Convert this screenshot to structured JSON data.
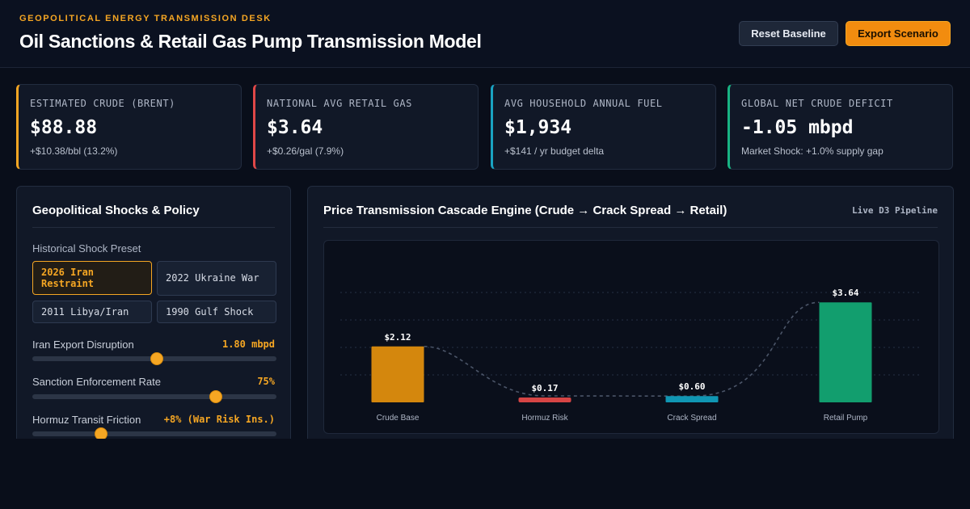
{
  "header": {
    "desk": "GEOPOLITICAL ENERGY TRANSMISSION DESK",
    "title": "Oil Sanctions & Retail Gas Pump Transmission Model",
    "reset_label": "Reset Baseline",
    "export_label": "Export Scenario"
  },
  "kpis": [
    {
      "label": "ESTIMATED CRUDE (BRENT)",
      "value": "$88.88",
      "sub": "+$10.38/bbl (13.2%)",
      "accent": "#f5a623"
    },
    {
      "label": "NATIONAL AVG RETAIL GAS",
      "value": "$3.64",
      "sub": "+$0.26/gal (7.9%)",
      "accent": "#e04848"
    },
    {
      "label": "AVG HOUSEHOLD ANNUAL FUEL",
      "value": "$1,934",
      "sub": "+$141 / yr budget delta",
      "accent": "#1aa3c2"
    },
    {
      "label": "GLOBAL NET CRUDE DEFICIT",
      "value": "-1.05 mbpd",
      "sub": "Market Shock: +1.0% supply gap",
      "accent": "#18b383"
    }
  ],
  "controls": {
    "title": "Geopolitical Shocks & Policy",
    "preset_label": "Historical Shock Preset",
    "presets": [
      {
        "label": "2026 Iran Restraint",
        "active": true
      },
      {
        "label": "2022 Ukraine War",
        "active": false
      },
      {
        "label": "2011 Libya/Iran",
        "active": false
      },
      {
        "label": "1990 Gulf Shock",
        "active": false
      }
    ],
    "sliders": [
      {
        "label": "Iran Export Disruption",
        "value": "1.80 mbpd",
        "fraction": 0.51
      },
      {
        "label": "Sanction Enforcement Rate",
        "value": "75%",
        "fraction": 0.75
      },
      {
        "label": "Hormuz Transit Friction",
        "value": "+8% (War Risk Ins.)",
        "fraction": 0.28
      }
    ]
  },
  "cascade": {
    "title": "Price Transmission Cascade Engine (Crude → Crack Spread → Retail)",
    "tag": "Live D3 Pipeline"
  },
  "chart_data": {
    "type": "bar",
    "categories": [
      "Crude Base",
      "Hormuz Risk",
      "Crack Spread",
      "Retail Pump"
    ],
    "values": [
      2.12,
      0.17,
      0.6,
      3.64
    ],
    "data_labels": [
      "$2.12",
      "$0.17",
      "$0.60",
      "$3.64"
    ],
    "colors": [
      "#d4870d",
      "#d64545",
      "#1096b3",
      "#129e6e"
    ],
    "ylim": [
      0,
      4.0
    ],
    "grid": true
  }
}
